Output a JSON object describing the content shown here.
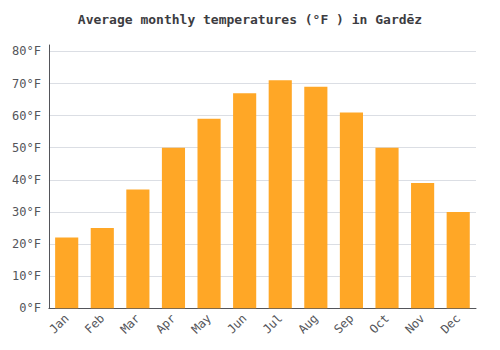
{
  "chart_data": {
    "type": "bar",
    "title": "Average monthly temperatures (°F ) in Gardēz",
    "categories": [
      "Jan",
      "Feb",
      "Mar",
      "Apr",
      "May",
      "Jun",
      "Jul",
      "Aug",
      "Sep",
      "Oct",
      "Nov",
      "Dec"
    ],
    "values": [
      22,
      25,
      37,
      50,
      59,
      67,
      71,
      69,
      61,
      50,
      39,
      30
    ],
    "color": "#FFA726",
    "ylim": [
      0,
      82
    ],
    "yticks": [
      {
        "value": 0,
        "label": "0°F"
      },
      {
        "value": 10,
        "label": "10°F"
      },
      {
        "value": 20,
        "label": "20°F"
      },
      {
        "value": 30,
        "label": "30°F"
      },
      {
        "value": 40,
        "label": "40°F"
      },
      {
        "value": 50,
        "label": "50°F"
      },
      {
        "value": 60,
        "label": "60°F"
      },
      {
        "value": 70,
        "label": "70°F"
      },
      {
        "value": 80,
        "label": "80°F"
      }
    ],
    "grid": true
  }
}
